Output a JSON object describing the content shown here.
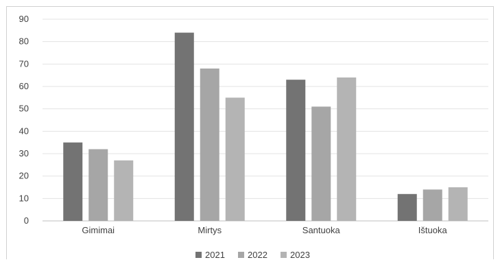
{
  "chart_data": {
    "type": "bar",
    "categories": [
      "Gimimai",
      "Mirtys",
      "Santuoka",
      "Ištuoka"
    ],
    "series": [
      {
        "name": "2021",
        "values": [
          35,
          84,
          63,
          12
        ],
        "color": "#737373"
      },
      {
        "name": "2022",
        "values": [
          32,
          68,
          51,
          14
        ],
        "color": "#a6a6a6"
      },
      {
        "name": "2023",
        "values": [
          27,
          55,
          64,
          15
        ],
        "color": "#b4b4b4"
      }
    ],
    "y_ticks": [
      "0",
      "10",
      "20",
      "30",
      "40",
      "50",
      "60",
      "70",
      "80",
      "90"
    ],
    "ylim": [
      0,
      90
    ],
    "grid": true,
    "legend_position": "bottom",
    "title": "",
    "xlabel": "",
    "ylabel": ""
  }
}
